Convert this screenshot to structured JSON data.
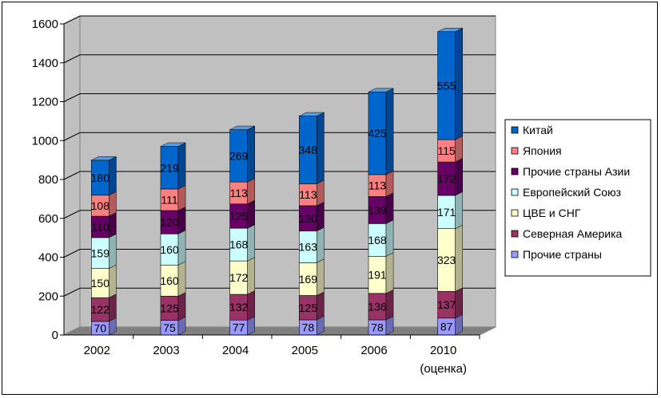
{
  "chart_data": {
    "type": "bar",
    "stacked": true,
    "three_d": true,
    "categories": [
      "2002",
      "2003",
      "2004",
      "2005",
      "2006",
      "2010"
    ],
    "category_sublabels": [
      "",
      "",
      "",
      "",
      "",
      "(оценка)"
    ],
    "series": [
      {
        "name": "Прочие страны",
        "color": "#9999ff",
        "values": [
          70,
          75,
          77,
          78,
          78,
          87
        ]
      },
      {
        "name": "Северная Америка",
        "color": "#993366",
        "values": [
          122,
          125,
          132,
          125,
          136,
          137
        ]
      },
      {
        "name": "ЦВЕ и СНГ",
        "color": "#ffffcc",
        "values": [
          150,
          160,
          172,
          169,
          191,
          323
        ]
      },
      {
        "name": "Европейский Союз",
        "color": "#ccffff",
        "values": [
          159,
          160,
          168,
          163,
          168,
          171
        ]
      },
      {
        "name": "Прочие страны Азии",
        "color": "#660066",
        "values": [
          110,
          120,
          125,
          130,
          139,
          172
        ]
      },
      {
        "name": "Япония",
        "color": "#ff8080",
        "values": [
          108,
          111,
          113,
          113,
          113,
          115
        ]
      },
      {
        "name": "Китай",
        "color": "#0066cc",
        "values": [
          180,
          219,
          269,
          348,
          425,
          555
        ]
      }
    ],
    "ylim": [
      0,
      1600
    ],
    "yticks": [
      "0",
      "200",
      "400",
      "600",
      "800",
      "1000",
      "1200",
      "1400",
      "1600"
    ],
    "grid": true,
    "legend_position": "right",
    "colors": {
      "wall": "#c0c0c0",
      "floor": "#808080",
      "grid": "#000000"
    }
  }
}
